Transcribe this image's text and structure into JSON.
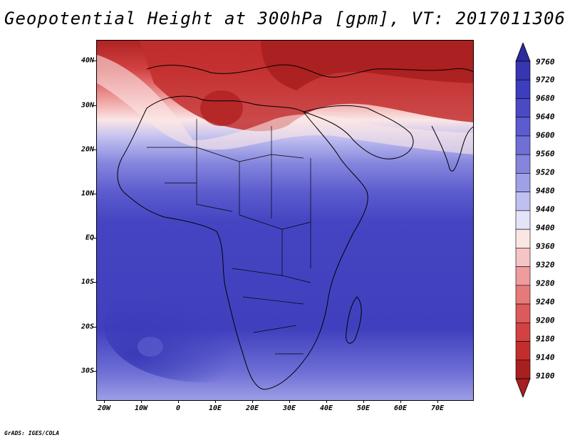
{
  "title": "Geopotential Height at 300hPa [gpm], VT: 2017011306",
  "credit": "GrADS: IGES/COLA",
  "map": {
    "lat_labels": [
      "40N",
      "30N",
      "20N",
      "10N",
      "EQ",
      "10S",
      "20S",
      "30S"
    ],
    "lon_labels": [
      "20W",
      "10W",
      "0",
      "10E",
      "20E",
      "30E",
      "40E",
      "50E",
      "60E",
      "70E"
    ],
    "lat_range": [
      -37,
      45
    ],
    "lon_range": [
      -22,
      80
    ]
  },
  "colorbar": {
    "levels": [
      "9760",
      "9720",
      "9680",
      "9640",
      "9600",
      "9560",
      "9520",
      "9480",
      "9440",
      "9400",
      "9360",
      "9320",
      "9280",
      "9240",
      "9200",
      "9180",
      "9140",
      "9100"
    ],
    "colors": [
      "#2b2b9e",
      "#3636b0",
      "#3d3dbd",
      "#4a4ac4",
      "#5c5cce",
      "#6f6fd6",
      "#8585de",
      "#a0a0e6",
      "#bfbff0",
      "#e4e4f8",
      "#fbe6e6",
      "#f6c4c4",
      "#ef9c9c",
      "#e57a7a",
      "#dd5a5a",
      "#d24242",
      "#c22e2e",
      "#a81f1f"
    ]
  },
  "icons": [
    "colorbar-max-arrow-icon",
    "colorbar-min-arrow-icon"
  ]
}
